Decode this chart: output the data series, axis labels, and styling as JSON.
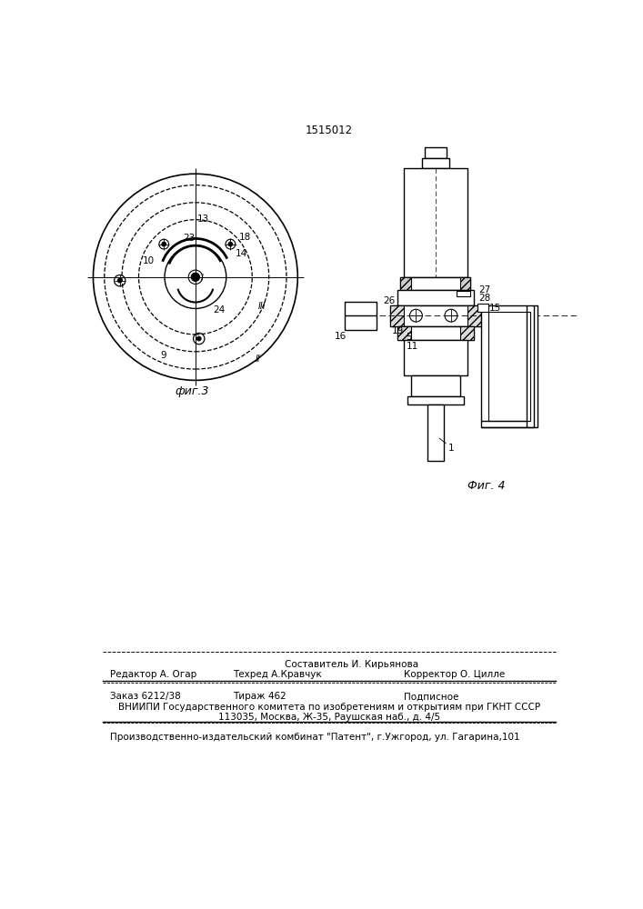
{
  "patent_number": "1515012",
  "background_color": "#ffffff",
  "line_color": "#000000",
  "fig_width": 7.07,
  "fig_height": 10.0,
  "footer": {
    "editor_line": "Редактор А. Огар",
    "composer_line": "Составитель И. Кирьянова",
    "techred_line": "Техред А.Кравчук",
    "corrector_line": "Корректор О. Цилле",
    "order_line": "Заказ 6212/38",
    "tirazh_line": "Тираж 462",
    "podpisnoe_line": "Подписное",
    "vniipи_line": "ВНИИПИ Государственного комитета по изобретениям и открытиям при ГКНТ СССР",
    "address_line": "113035, Москва, Ж-35, Раушская наб., д. 4/5",
    "kombinat_line": "Производственно-издательский комбинат \"Патент\", г.Ужгород, ул. Гагарина,101"
  },
  "fig3_caption": "фиг.3",
  "fig4_caption": "Фиг. 4"
}
